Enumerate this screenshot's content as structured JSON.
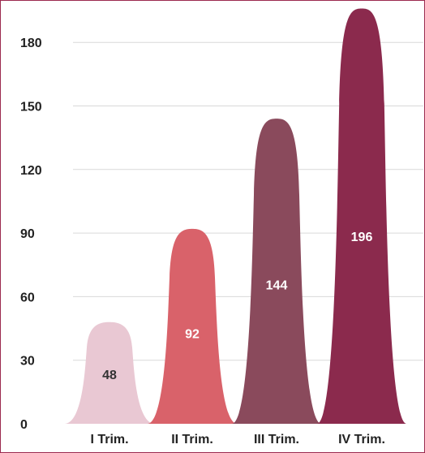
{
  "chart_data": {
    "type": "bar",
    "style": "bell-shaped peaks",
    "categories": [
      "I Trim.",
      "II Trim.",
      "III Trim.",
      "IV Trim."
    ],
    "values": [
      48,
      92,
      144,
      196
    ],
    "data_labels": [
      "48",
      "92",
      "144",
      "196"
    ],
    "colors": [
      "#e9c8d3",
      "#d9626a",
      "#8a4a5c",
      "#8b2a4d"
    ],
    "label_colors": [
      "#333333",
      "#ffffff",
      "#ffffff",
      "#ffffff"
    ],
    "yticks": [
      "0",
      "30",
      "60",
      "90",
      "120",
      "150",
      "180"
    ],
    "ytick_values": [
      0,
      30,
      60,
      90,
      120,
      150,
      180
    ],
    "ylim": [
      0,
      196
    ],
    "grid": true,
    "legend": "none"
  }
}
